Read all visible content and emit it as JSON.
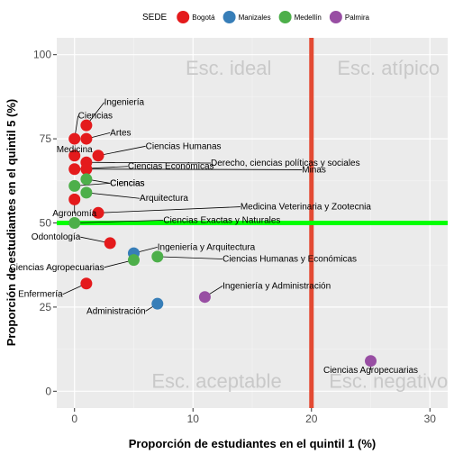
{
  "chart_data": {
    "type": "scatter",
    "xlabel": "Proporción de estudiantes en el quintil 1 (%)",
    "ylabel": "Proporción de estudiantes en el quintil 5 (%)",
    "xlim": [
      -1.5,
      31.5
    ],
    "ylim": [
      -5,
      105
    ],
    "x_ticks": [
      0,
      10,
      20,
      30
    ],
    "y_ticks": [
      0,
      25,
      50,
      75,
      100
    ],
    "grid": true,
    "legend": {
      "title": "SEDE",
      "position": "top",
      "entries": [
        {
          "name": "Bogotá",
          "color": "#e41a1c"
        },
        {
          "name": "Manizales",
          "color": "#377eb8"
        },
        {
          "name": "Medellín",
          "color": "#4daf4a"
        },
        {
          "name": "Palmira",
          "color": "#984ea3"
        }
      ]
    },
    "reference_lines": [
      {
        "axis": "x",
        "value": 20,
        "color": "#e34a33"
      },
      {
        "axis": "y",
        "value": 50,
        "color": "#00ff00"
      }
    ],
    "zones": [
      {
        "label": "Esc. ideal",
        "x": 13,
        "y": 94
      },
      {
        "label": "Esc. atípico",
        "x": 26.5,
        "y": 94
      },
      {
        "label": "Esc. aceptable",
        "x": 12,
        "y": 1
      },
      {
        "label": "Esc. negativo",
        "x": 26.5,
        "y": 1
      }
    ],
    "points": [
      {
        "sede": "Bogotá",
        "label": "Ingeniería",
        "x": 1,
        "y": 79,
        "lx": 2.5,
        "ly": 85
      },
      {
        "sede": "Bogotá",
        "label": "Ciencias",
        "x": 0,
        "y": 75,
        "lx": 0.3,
        "ly": 81
      },
      {
        "sede": "Bogotá",
        "label": "Artes",
        "x": 1,
        "y": 75,
        "lx": 3,
        "ly": 76
      },
      {
        "sede": "Bogotá",
        "label": "Medicina",
        "x": 0,
        "y": 70,
        "lx": 0,
        "ly": 71
      },
      {
        "sede": "Bogotá",
        "label": "Ciencias Humanas",
        "x": 2,
        "y": 70,
        "lx": 6,
        "ly": 72
      },
      {
        "sede": "Bogotá",
        "label": "Derecho, ciencias políticas y sociales",
        "x": 1,
        "y": 68,
        "lx": 11.5,
        "ly": 67
      },
      {
        "sede": "Bogotá",
        "label": "Ciencias Económicas",
        "x": 0,
        "y": 66,
        "lx": 4.5,
        "ly": 66
      },
      {
        "sede": "Bogotá",
        "label": "Minas",
        "x": 1,
        "y": 66,
        "lx": 19.2,
        "ly": 65
      },
      {
        "sede": "Bogotá",
        "label": "Medicina Veterinaria y Zootecnia",
        "x": 2,
        "y": 53,
        "lx": 14,
        "ly": 54
      },
      {
        "sede": "Bogotá",
        "label": "Agronomía",
        "x": 0,
        "y": 57,
        "lx": 0,
        "ly": 52
      },
      {
        "sede": "Bogotá",
        "label": "Odontología",
        "x": 3,
        "y": 44,
        "lx": 0.5,
        "ly": 45
      },
      {
        "sede": "Bogotá",
        "label": "Enfermería",
        "x": 1,
        "y": 32,
        "lx": -1,
        "ly": 28
      },
      {
        "sede": "Manizales",
        "label": "Ingeniería y Arquitectura",
        "x": 5,
        "y": 41,
        "lx": 7,
        "ly": 42
      },
      {
        "sede": "Manizales",
        "label": "Administración",
        "x": 7,
        "y": 26,
        "lx": 6,
        "ly": 23
      },
      {
        "sede": "Medellín",
        "label": "Ciencias",
        "x": 0,
        "y": 61,
        "lx": 3,
        "ly": 61
      },
      {
        "sede": "Medellín",
        "label": "Ciencias",
        "x": 1,
        "y": 63,
        "lx": 3,
        "ly": 61
      },
      {
        "sede": "Medellín",
        "label": "Arquitectura",
        "x": 1,
        "y": 59,
        "lx": 5.5,
        "ly": 56.5
      },
      {
        "sede": "Medellín",
        "label": "Ciencias Exactas y Naturales",
        "x": 0,
        "y": 50,
        "lx": 7.5,
        "ly": 50
      },
      {
        "sede": "Medellín",
        "label": "Ciencias Agropecuarias",
        "x": 5,
        "y": 39,
        "lx": 2.5,
        "ly": 36
      },
      {
        "sede": "Medellín",
        "label": "Ciencias Humanas y Económicas",
        "x": 7,
        "y": 40,
        "lx": 12.5,
        "ly": 38.5
      },
      {
        "sede": "Palmira",
        "label": "Ingeniería y Administración",
        "x": 11,
        "y": 28,
        "lx": 12.5,
        "ly": 30.5
      },
      {
        "sede": "Palmira",
        "label": "Ciencias Agropecuarias",
        "x": 25,
        "y": 9,
        "lx": 25,
        "ly": 5.5
      }
    ]
  }
}
